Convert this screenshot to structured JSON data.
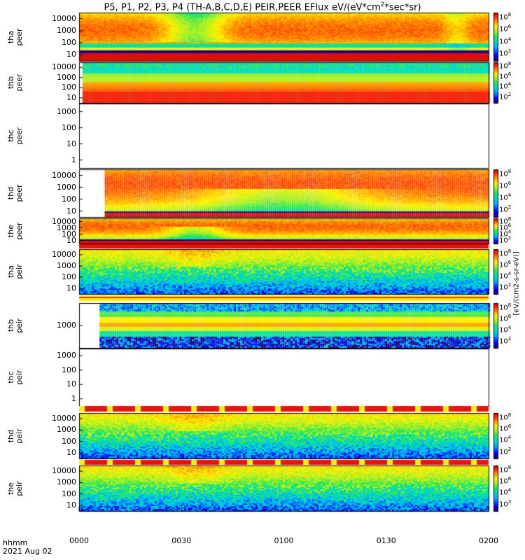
{
  "title": "P5, P1, P2, P3, P4 (TH-A,B,C,D,E) PEIR,PEER EFlux eV/(eV*cm",
  "title_sup": "2",
  "title_end": "*sec*sr)",
  "footer": {
    "line1": "hhmm",
    "line2": "2021 Aug 02"
  },
  "unit_label": "[eV/(cm2-s-sr-eV)]",
  "chart_data": {
    "type": "heatmap",
    "x_ticks": [
      "0000",
      "0030",
      "0100",
      "0130",
      "0200"
    ],
    "x_range_minutes": [
      0,
      120
    ],
    "colorbar_ticks": [
      "10",
      "10",
      "10",
      "10"
    ],
    "colorbar_exponents": [
      "8",
      "6",
      "4",
      "2"
    ],
    "panels": [
      {
        "id": "tha-peer",
        "ylabel1": "tha",
        "ylabel2": "peer",
        "yticks": [
          "10000",
          "1000",
          "100",
          "10"
        ],
        "data_start_min": 0,
        "data_end_min": 120,
        "base": "peerA",
        "colorbar": true
      },
      {
        "id": "thb-peer",
        "ylabel1": "thb",
        "ylabel2": "peer",
        "yticks": [
          "10000",
          "1000",
          "100",
          "10"
        ],
        "data_start_min": 1.0,
        "data_end_min": 120,
        "base": "peerB",
        "colorbar": true
      },
      {
        "id": "thc-peer",
        "ylabel1": "thc",
        "ylabel2": "peer",
        "yticks": [
          "1000",
          "100",
          "10",
          "1"
        ],
        "data_start_min": null,
        "data_end_min": null,
        "base": "empty",
        "colorbar": false
      },
      {
        "id": "thd-peer",
        "ylabel1": "thd",
        "ylabel2": "peer",
        "yticks": [
          "10000",
          "1000",
          "100",
          "10"
        ],
        "data_start_min": 7.5,
        "data_end_min": 120,
        "base": "peerD",
        "colorbar": true
      },
      {
        "id": "the-peer",
        "ylabel1": "the",
        "ylabel2": "peer",
        "yticks": [
          "10000",
          "1000",
          "100",
          "10"
        ],
        "data_start_min": 0,
        "data_end_min": 120,
        "base": "peerE",
        "colorbar": true
      },
      {
        "id": "tha-peir",
        "ylabel1": "tha",
        "ylabel2": "peir",
        "yticks": [
          "10000",
          "1000",
          "100",
          "10"
        ],
        "data_start_min": 0,
        "data_end_min": 120,
        "base": "peir",
        "colorbar": true
      },
      {
        "id": "thb-peir",
        "ylabel1": "thb",
        "ylabel2": "peir",
        "yticks": [
          "1000"
        ],
        "data_start_min": 6.0,
        "data_end_min": 120,
        "base": "peirB",
        "colorbar": true
      },
      {
        "id": "thc-peir",
        "ylabel1": "thc",
        "ylabel2": "peir",
        "yticks": [
          "1000",
          "100",
          "10",
          "1"
        ],
        "data_start_min": null,
        "data_end_min": null,
        "base": "empty",
        "colorbar": false
      },
      {
        "id": "thd-peir",
        "ylabel1": "thd",
        "ylabel2": "peir",
        "yticks": [
          "10000",
          "1000",
          "100",
          "10"
        ],
        "data_start_min": 0,
        "data_end_min": 120,
        "base": "peir",
        "colorbar": true
      },
      {
        "id": "the-peir",
        "ylabel1": "the",
        "ylabel2": "peir",
        "yticks": [
          "10000",
          "1000",
          "100",
          "10"
        ],
        "data_start_min": 0,
        "data_end_min": 120,
        "base": "peir",
        "colorbar": true
      }
    ]
  }
}
